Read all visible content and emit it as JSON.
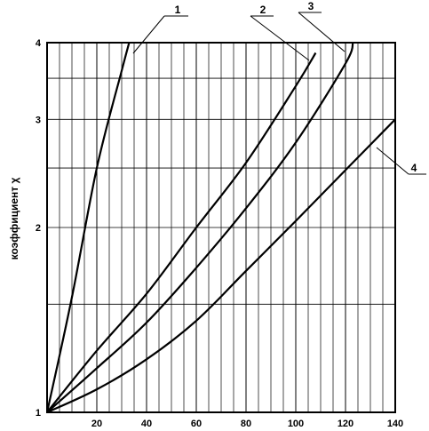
{
  "chart_data": {
    "type": "line",
    "title": "",
    "xlabel": "",
    "ylabel": "коэффициент χ",
    "y_scale": "log",
    "xlim": [
      0,
      140
    ],
    "ylim": [
      1,
      4
    ],
    "x_ticks": [
      20,
      40,
      60,
      80,
      100,
      120,
      140
    ],
    "x_tick_labels": [
      "20",
      "40",
      "60",
      "80",
      "100",
      "120",
      "140"
    ],
    "y_ticks": [
      1,
      2,
      3,
      4
    ],
    "y_tick_labels": [
      "1",
      "2",
      "3",
      "4"
    ],
    "x_minor_gridlines": [
      5,
      10,
      15,
      20,
      25,
      30,
      35,
      40,
      45,
      50,
      55,
      60,
      65,
      70,
      75,
      80,
      85,
      90,
      95,
      100,
      105,
      110,
      115,
      120,
      125,
      130,
      135,
      140
    ],
    "y_minor_gridlines": [
      1.5,
      2,
      2.5,
      3,
      3.5,
      4
    ],
    "grid": true,
    "series": [
      {
        "name": "1",
        "x": [
          0,
          10,
          20,
          30,
          33
        ],
        "y": [
          1,
          1.54,
          2.5,
          3.6,
          4.0
        ]
      },
      {
        "name": "2",
        "x": [
          0,
          20,
          40,
          60,
          80,
          100,
          108
        ],
        "y": [
          1,
          1.26,
          1.56,
          2.0,
          2.55,
          3.4,
          3.85
        ]
      },
      {
        "name": "3",
        "x": [
          0,
          20,
          40,
          60,
          80,
          100,
          120,
          123
        ],
        "y": [
          1,
          1.18,
          1.4,
          1.72,
          2.15,
          2.75,
          3.7,
          4.0
        ]
      },
      {
        "name": "4",
        "x": [
          0,
          20,
          40,
          60,
          80,
          100,
          120,
          140
        ],
        "y": [
          1,
          1.09,
          1.22,
          1.41,
          1.7,
          2.05,
          2.48,
          3.0
        ]
      }
    ]
  }
}
